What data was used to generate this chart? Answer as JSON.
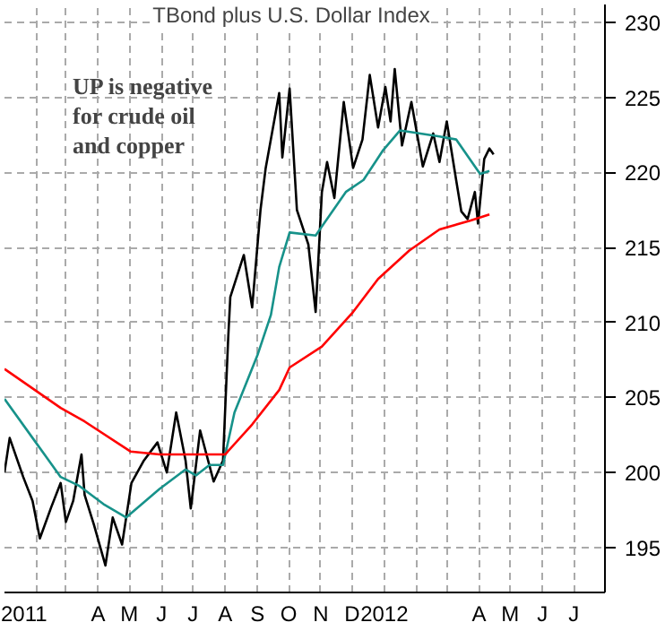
{
  "chart_data": {
    "type": "line",
    "title": "TBond plus U.S. Dollar Index",
    "annotations": [
      "UP is negative\nfor crude oil\nand copper"
    ],
    "series": [
      {
        "color": "#000000",
        "x": [
          "2011-01-01",
          "2011-01-06",
          "2011-01-19",
          "2011-01-28",
          "2011-02-04",
          "2011-02-15",
          "2011-02-24",
          "2011-03-01",
          "2011-03-08",
          "2011-03-16",
          "2011-03-19",
          "2011-03-28",
          "2011-04-08",
          "2011-04-15",
          "2011-04-24",
          "2011-05-03",
          "2011-05-15",
          "2011-05-28",
          "2011-06-06",
          "2011-06-15",
          "2011-06-24",
          "2011-06-29",
          "2011-07-08",
          "2011-07-21",
          "2011-07-30",
          "2011-08-04",
          "2011-08-06",
          "2011-08-19",
          "2011-08-27",
          "2011-09-04",
          "2011-09-09",
          "2011-09-22",
          "2011-09-25",
          "2011-10-02",
          "2011-10-09",
          "2011-10-20",
          "2011-10-27",
          "2011-11-02",
          "2011-11-07",
          "2011-11-14",
          "2011-11-23",
          "2011-12-02",
          "2011-12-11",
          "2011-12-18",
          "2011-12-26",
          "2012-01-02",
          "2012-01-07",
          "2012-01-11",
          "2012-01-18",
          "2012-01-27",
          "2012-02-07",
          "2012-02-17",
          "2012-02-23",
          "2012-03-01",
          "2012-03-10",
          "2012-03-15",
          "2012-03-21",
          "2012-03-28",
          "2012-03-31",
          "2012-04-06",
          "2012-04-11",
          "2012-04-15"
        ],
        "values": [
          200.0,
          202.3,
          199.7,
          198.1,
          195.6,
          197.7,
          199.3,
          196.7,
          198.1,
          201.2,
          198.5,
          196.5,
          193.8,
          197.0,
          195.2,
          199.3,
          200.8,
          202.0,
          200.0,
          204.0,
          200.8,
          197.6,
          202.8,
          199.4,
          200.8,
          209.0,
          211.7,
          214.5,
          211.0,
          217.5,
          220.3,
          225.3,
          221.0,
          225.6,
          217.5,
          215.2,
          210.7,
          218.7,
          220.7,
          218.3,
          224.7,
          220.3,
          222.2,
          226.5,
          223.0,
          225.7,
          223.4,
          226.9,
          221.8,
          224.7,
          220.4,
          222.6,
          220.7,
          223.4,
          219.5,
          217.4,
          216.9,
          218.7,
          216.6,
          220.9,
          221.6,
          221.2
        ]
      },
      {
        "color": "#17928a",
        "x": [
          "2011-01-01",
          "2011-01-28",
          "2011-02-24",
          "2011-03-14",
          "2011-04-06",
          "2011-04-28",
          "2011-05-30",
          "2011-06-24",
          "2011-07-04",
          "2011-07-17",
          "2011-07-30",
          "2011-08-10",
          "2011-09-01",
          "2011-09-14",
          "2011-09-22",
          "2011-10-02",
          "2011-10-27",
          "2011-11-25",
          "2011-12-12",
          "2011-12-31",
          "2012-01-16",
          "2012-02-23",
          "2012-03-10",
          "2012-04-02",
          "2012-04-11"
        ],
        "values": [
          204.9,
          202.3,
          199.7,
          199.1,
          197.9,
          197.0,
          198.9,
          200.2,
          199.8,
          200.5,
          200.5,
          204.0,
          207.8,
          210.5,
          213.7,
          216.0,
          215.8,
          218.7,
          219.5,
          221.5,
          222.8,
          222.4,
          222.2,
          219.9,
          220.1
        ]
      },
      {
        "color": "#ff0000",
        "x": [
          "2011-01-01",
          "2011-01-24",
          "2011-02-24",
          "2011-03-19",
          "2011-05-02",
          "2011-05-30",
          "2011-06-29",
          "2011-08-01",
          "2011-08-27",
          "2011-09-22",
          "2011-10-02",
          "2011-11-02",
          "2011-12-02",
          "2011-12-26",
          "2012-01-25",
          "2012-02-23",
          "2012-03-24",
          "2012-04-11"
        ],
        "values": [
          206.9,
          205.8,
          204.3,
          203.4,
          201.4,
          201.2,
          201.2,
          201.2,
          203.2,
          205.5,
          207.0,
          208.4,
          210.7,
          212.9,
          214.8,
          216.2,
          216.8,
          217.2
        ]
      }
    ],
    "xlim": [
      "2011-01-01",
      "2012-07-31"
    ],
    "xticks": [
      {
        "value": "2011-01-01",
        "label": "2011"
      },
      {
        "value": "2011-02-01",
        "label": null
      },
      {
        "value": "2011-03-01",
        "label": null
      },
      {
        "value": "2011-04-01",
        "label": "A"
      },
      {
        "value": "2011-05-01",
        "label": "M"
      },
      {
        "value": "2011-06-01",
        "label": "J"
      },
      {
        "value": "2011-07-01",
        "label": "J"
      },
      {
        "value": "2011-08-01",
        "label": "A"
      },
      {
        "value": "2011-09-01",
        "label": "S"
      },
      {
        "value": "2011-10-01",
        "label": "O"
      },
      {
        "value": "2011-11-01",
        "label": "N"
      },
      {
        "value": "2011-12-01",
        "label": "D"
      },
      {
        "value": "2012-01-01",
        "label": "2012"
      },
      {
        "value": "2012-02-01",
        "label": null
      },
      {
        "value": "2012-03-01",
        "label": null
      },
      {
        "value": "2012-04-01",
        "label": "A"
      },
      {
        "value": "2012-05-01",
        "label": "M"
      },
      {
        "value": "2012-06-01",
        "label": "J"
      },
      {
        "value": "2012-07-01",
        "label": "J"
      }
    ],
    "ylim": [
      192,
      231.2
    ],
    "yticks": [
      195,
      200,
      205,
      210,
      215,
      220,
      225,
      230
    ],
    "grid": true,
    "marker": "none",
    "line_style": "solid"
  }
}
